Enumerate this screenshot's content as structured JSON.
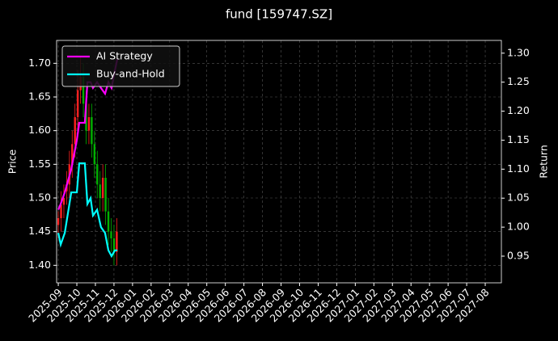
{
  "chart_data": {
    "type": "candlestick",
    "title": "fund [159747.SZ]",
    "ylabel": "Price",
    "y2label": "Return",
    "candles": {
      "up_color": "#ff2020",
      "down_color": "#00b000",
      "x": [
        0,
        0.15,
        0.3,
        0.45,
        0.6,
        0.75,
        0.9,
        1.05,
        1.2,
        1.35,
        1.5,
        1.65,
        1.8,
        1.95,
        2.1,
        2.25,
        2.4,
        2.55,
        2.7,
        2.85,
        3.0,
        3.15
      ],
      "open": [
        1.46,
        1.47,
        1.49,
        1.51,
        1.52,
        1.55,
        1.58,
        1.62,
        1.66,
        1.68,
        1.64,
        1.6,
        1.62,
        1.58,
        1.55,
        1.52,
        1.5,
        1.53,
        1.48,
        1.45,
        1.44,
        1.42
      ],
      "high": [
        1.48,
        1.51,
        1.52,
        1.54,
        1.57,
        1.6,
        1.64,
        1.69,
        1.71,
        1.7,
        1.66,
        1.64,
        1.64,
        1.6,
        1.57,
        1.54,
        1.55,
        1.55,
        1.5,
        1.47,
        1.46,
        1.47
      ],
      "low": [
        1.44,
        1.45,
        1.47,
        1.49,
        1.5,
        1.53,
        1.56,
        1.6,
        1.64,
        1.62,
        1.58,
        1.58,
        1.56,
        1.53,
        1.5,
        1.48,
        1.48,
        1.46,
        1.43,
        1.42,
        1.4,
        1.4
      ],
      "close": [
        1.47,
        1.49,
        1.5,
        1.52,
        1.55,
        1.58,
        1.62,
        1.66,
        1.68,
        1.64,
        1.6,
        1.62,
        1.58,
        1.55,
        1.52,
        1.5,
        1.53,
        1.48,
        1.45,
        1.44,
        1.42,
        1.45
      ]
    },
    "series": [
      {
        "name": "AI Strategy",
        "color": "#ff00ff",
        "axis": "y2",
        "x": [
          0,
          0.13,
          0.35,
          0.7,
          1.0,
          1.13,
          1.43,
          1.57,
          1.74,
          1.87,
          2.09,
          2.3,
          2.52,
          2.7,
          2.87,
          3.05,
          3.18
        ],
        "values": [
          1.03,
          1.04,
          1.06,
          1.1,
          1.15,
          1.18,
          1.18,
          1.25,
          1.25,
          1.24,
          1.25,
          1.24,
          1.23,
          1.25,
          1.24,
          1.27,
          1.29
        ]
      },
      {
        "name": "Buy-and-Hold",
        "color": "#00ffff",
        "axis": "y2",
        "x": [
          0,
          0.13,
          0.35,
          0.7,
          1.0,
          1.13,
          1.43,
          1.57,
          1.74,
          1.87,
          2.09,
          2.3,
          2.52,
          2.7,
          2.87,
          3.05,
          3.18
        ],
        "values": [
          0.99,
          0.97,
          0.99,
          1.06,
          1.06,
          1.11,
          1.11,
          1.04,
          1.05,
          1.02,
          1.03,
          1.0,
          0.99,
          0.96,
          0.95,
          0.96,
          0.96
        ]
      }
    ],
    "ylim": [
      1.374,
      1.734
    ],
    "yticks": [
      {
        "value": 1.4,
        "label": "1.40"
      },
      {
        "value": 1.45,
        "label": "1.45"
      },
      {
        "value": 1.5,
        "label": "1.50"
      },
      {
        "value": 1.55,
        "label": "1.55"
      },
      {
        "value": 1.6,
        "label": "1.60"
      },
      {
        "value": 1.65,
        "label": "1.65"
      },
      {
        "value": 1.7,
        "label": "1.70"
      }
    ],
    "y2lim": [
      0.904,
      1.322
    ],
    "y2ticks": [
      0.95,
      {
        "value": 1.0,
        "label": "1.00"
      },
      1.05,
      {
        "value": 1.1,
        "label": "1.10"
      },
      1.15,
      {
        "value": 1.2,
        "label": "1.20"
      },
      1.25,
      {
        "value": 1.3,
        "label": "1.30"
      }
    ],
    "xlim": [
      -0.09,
      23.87
    ],
    "xticks": [
      {
        "value": 0,
        "label": "2025-09"
      },
      {
        "value": 1,
        "label": "2025-10"
      },
      {
        "value": 2,
        "label": "2025-11"
      },
      {
        "value": 3,
        "label": "2025-12"
      },
      {
        "value": 4,
        "label": "2026-01"
      },
      {
        "value": 5,
        "label": "2026-02"
      },
      {
        "value": 6,
        "label": "2026-03"
      },
      {
        "value": 7,
        "label": "2026-04"
      },
      {
        "value": 8,
        "label": "2026-05"
      },
      {
        "value": 9,
        "label": "2026-06"
      },
      {
        "value": 10,
        "label": "2026-07"
      },
      {
        "value": 11,
        "label": "2026-08"
      },
      {
        "value": 12,
        "label": "2026-09"
      },
      {
        "value": 13,
        "label": "2026-10"
      },
      {
        "value": 14,
        "label": "2026-11"
      },
      {
        "value": 15,
        "label": "2026-12"
      },
      {
        "value": 16,
        "label": "2027-01"
      },
      {
        "value": 17,
        "label": "2027-02"
      },
      {
        "value": 18,
        "label": "2027-03"
      },
      {
        "value": 19,
        "label": "2027-04"
      },
      {
        "value": 20,
        "label": "2027-05"
      },
      {
        "value": 21,
        "label": "2027-06"
      },
      {
        "value": 22,
        "label": "2027-07"
      },
      {
        "value": 23,
        "label": "2027-08"
      }
    ],
    "grid": true,
    "legend": "upper left"
  }
}
